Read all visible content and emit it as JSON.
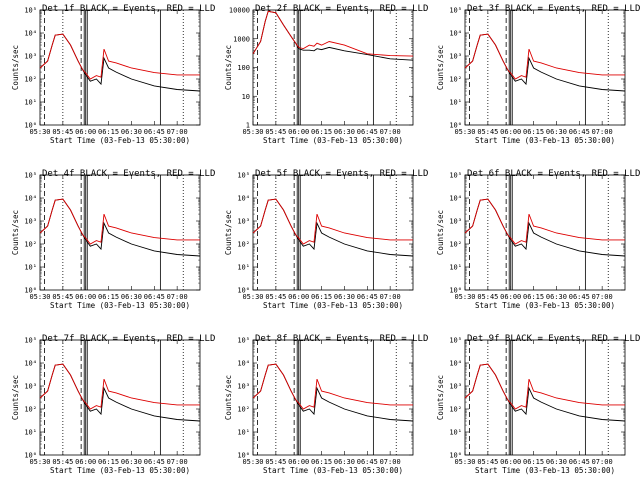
{
  "figure": {
    "ylabel": "Counts/sec",
    "xlabel": "Start Time (03-Feb-13 05:30:00)",
    "x_tick_labels": [
      "05:30",
      "05:45",
      "06:00",
      "06:15",
      "06:30",
      "06:45",
      "07:00"
    ],
    "series_colors": {
      "events": "#000000",
      "lld": "#dd0000"
    },
    "line_styles": {
      "solid": "#000000",
      "dashed": "#000000",
      "dotted": "#000000"
    }
  },
  "chart_data": [
    {
      "type": "line",
      "title": "Det 1f BLACK = Events, RED = LLD",
      "ylim": [
        1,
        100000
      ],
      "yscale": "log",
      "y_tick_labels": [
        "10⁰",
        "10¹",
        "10²",
        "10³",
        "10⁴",
        "10⁵"
      ],
      "x": [
        "05:30",
        "05:35",
        "05:38",
        "05:40",
        "05:45",
        "05:50",
        "05:55",
        "05:58",
        "06:00",
        "06:03",
        "06:07",
        "06:10",
        "06:12",
        "06:15",
        "06:20",
        "06:30",
        "06:45",
        "07:00",
        "07:15"
      ],
      "series": [
        {
          "key": "lld",
          "values": [
            300,
            600,
            3000,
            8000,
            9000,
            3000,
            600,
            250,
            180,
            100,
            140,
            120,
            2000,
            600,
            500,
            300,
            190,
            150,
            150
          ]
        },
        {
          "key": "events",
          "values": [
            300,
            600,
            3000,
            8000,
            9000,
            3000,
            600,
            250,
            150,
            80,
            100,
            60,
            800,
            300,
            200,
            100,
            50,
            35,
            30
          ]
        }
      ],
      "vlines": [
        {
          "x": "05:33",
          "style": "dashed"
        },
        {
          "x": "05:45",
          "style": "dotted"
        },
        {
          "x": "05:57",
          "style": "dashed"
        },
        {
          "x": "05:59",
          "style": "solid"
        },
        {
          "x": "06:00",
          "style": "solid"
        },
        {
          "x": "06:01",
          "style": "solid"
        },
        {
          "x": "06:49",
          "style": "solid"
        },
        {
          "x": "07:04",
          "style": "dotted"
        }
      ]
    },
    {
      "type": "line",
      "title": "Det 2f BLACK = Events, RED = LLD",
      "ylim": [
        1,
        10000
      ],
      "yscale": "log",
      "y_tick_labels": [
        "1",
        "10",
        "100",
        "1000",
        "10000"
      ],
      "x": [
        "05:30",
        "05:35",
        "05:38",
        "05:40",
        "05:45",
        "05:50",
        "05:55",
        "05:58",
        "06:00",
        "06:03",
        "06:07",
        "06:10",
        "06:12",
        "06:15",
        "06:20",
        "06:30",
        "06:45",
        "07:00",
        "07:15"
      ],
      "series": [
        {
          "key": "lld",
          "values": [
            300,
            800,
            4000,
            9000,
            8000,
            3000,
            1200,
            700,
            500,
            450,
            600,
            550,
            700,
            600,
            800,
            600,
            300,
            260,
            250
          ]
        },
        {
          "key": "events",
          "values": [
            300,
            800,
            4000,
            9000,
            8000,
            3000,
            1200,
            700,
            450,
            400,
            400,
            380,
            450,
            420,
            500,
            380,
            280,
            200,
            180
          ]
        }
      ],
      "vlines": [
        {
          "x": "05:33",
          "style": "dashed"
        },
        {
          "x": "05:45",
          "style": "dotted"
        },
        {
          "x": "05:57",
          "style": "dashed"
        },
        {
          "x": "05:59",
          "style": "solid"
        },
        {
          "x": "06:00",
          "style": "solid"
        },
        {
          "x": "06:01",
          "style": "solid"
        },
        {
          "x": "06:49",
          "style": "solid"
        },
        {
          "x": "07:04",
          "style": "dotted"
        }
      ]
    },
    {
      "type": "line",
      "title": "Det 3f BLACK = Events, RED = LLD",
      "ylim": [
        1,
        100000
      ],
      "yscale": "log",
      "y_tick_labels": [
        "10⁰",
        "10¹",
        "10²",
        "10³",
        "10⁴",
        "10⁵"
      ],
      "x": [
        "05:30",
        "05:35",
        "05:38",
        "05:40",
        "05:45",
        "05:50",
        "05:55",
        "05:58",
        "06:00",
        "06:03",
        "06:07",
        "06:10",
        "06:12",
        "06:15",
        "06:20",
        "06:30",
        "06:45",
        "07:00",
        "07:15"
      ],
      "series": [
        {
          "key": "lld",
          "values": [
            300,
            600,
            3000,
            8000,
            9000,
            3000,
            600,
            250,
            180,
            100,
            140,
            120,
            2000,
            600,
            500,
            300,
            190,
            150,
            150
          ]
        },
        {
          "key": "events",
          "values": [
            300,
            600,
            3000,
            8000,
            9000,
            3000,
            600,
            250,
            150,
            80,
            100,
            60,
            800,
            300,
            200,
            100,
            50,
            35,
            30
          ]
        }
      ],
      "vlines": [
        {
          "x": "05:33",
          "style": "dashed"
        },
        {
          "x": "05:45",
          "style": "dotted"
        },
        {
          "x": "05:57",
          "style": "dashed"
        },
        {
          "x": "05:59",
          "style": "solid"
        },
        {
          "x": "06:00",
          "style": "solid"
        },
        {
          "x": "06:01",
          "style": "solid"
        },
        {
          "x": "06:49",
          "style": "solid"
        },
        {
          "x": "07:04",
          "style": "dotted"
        }
      ]
    },
    {
      "type": "line",
      "title": "Det 4f BLACK = Events, RED = LLD",
      "ylim": [
        1,
        100000
      ],
      "yscale": "log",
      "y_tick_labels": [
        "10⁰",
        "10¹",
        "10²",
        "10³",
        "10⁴",
        "10⁵"
      ],
      "x": [
        "05:30",
        "05:35",
        "05:38",
        "05:40",
        "05:45",
        "05:50",
        "05:55",
        "05:58",
        "06:00",
        "06:03",
        "06:07",
        "06:10",
        "06:12",
        "06:15",
        "06:20",
        "06:30",
        "06:45",
        "07:00",
        "07:15"
      ],
      "series": [
        {
          "key": "lld",
          "values": [
            300,
            600,
            3000,
            8000,
            9000,
            3000,
            600,
            250,
            180,
            100,
            140,
            120,
            2000,
            600,
            500,
            300,
            190,
            150,
            150
          ]
        },
        {
          "key": "events",
          "values": [
            300,
            600,
            3000,
            8000,
            9000,
            3000,
            600,
            250,
            150,
            80,
            100,
            60,
            800,
            300,
            200,
            100,
            50,
            35,
            30
          ]
        }
      ],
      "vlines": [
        {
          "x": "05:33",
          "style": "dashed"
        },
        {
          "x": "05:45",
          "style": "dotted"
        },
        {
          "x": "05:57",
          "style": "dashed"
        },
        {
          "x": "05:59",
          "style": "solid"
        },
        {
          "x": "06:00",
          "style": "solid"
        },
        {
          "x": "06:01",
          "style": "solid"
        },
        {
          "x": "06:49",
          "style": "solid"
        },
        {
          "x": "07:04",
          "style": "dotted"
        }
      ]
    },
    {
      "type": "line",
      "title": "Det 5f BLACK = Events, RED = LLD",
      "ylim": [
        1,
        100000
      ],
      "yscale": "log",
      "y_tick_labels": [
        "10⁰",
        "10¹",
        "10²",
        "10³",
        "10⁴",
        "10⁵"
      ],
      "x": [
        "05:30",
        "05:35",
        "05:38",
        "05:40",
        "05:45",
        "05:50",
        "05:55",
        "05:58",
        "06:00",
        "06:03",
        "06:07",
        "06:10",
        "06:12",
        "06:15",
        "06:20",
        "06:30",
        "06:45",
        "07:00",
        "07:15"
      ],
      "series": [
        {
          "key": "lld",
          "values": [
            300,
            600,
            3000,
            8000,
            9000,
            3000,
            600,
            250,
            180,
            100,
            140,
            120,
            2000,
            600,
            500,
            300,
            190,
            150,
            150
          ]
        },
        {
          "key": "events",
          "values": [
            300,
            600,
            3000,
            8000,
            9000,
            3000,
            600,
            250,
            150,
            80,
            100,
            60,
            800,
            300,
            200,
            100,
            50,
            35,
            30
          ]
        }
      ],
      "vlines": [
        {
          "x": "05:33",
          "style": "dashed"
        },
        {
          "x": "05:45",
          "style": "dotted"
        },
        {
          "x": "05:57",
          "style": "dashed"
        },
        {
          "x": "05:59",
          "style": "solid"
        },
        {
          "x": "06:00",
          "style": "solid"
        },
        {
          "x": "06:01",
          "style": "solid"
        },
        {
          "x": "06:49",
          "style": "solid"
        },
        {
          "x": "07:04",
          "style": "dotted"
        }
      ]
    },
    {
      "type": "line",
      "title": "Det 6f BLACK = Events, RED = LLD",
      "ylim": [
        1,
        100000
      ],
      "yscale": "log",
      "y_tick_labels": [
        "10⁰",
        "10¹",
        "10²",
        "10³",
        "10⁴",
        "10⁵"
      ],
      "x": [
        "05:30",
        "05:35",
        "05:38",
        "05:40",
        "05:45",
        "05:50",
        "05:55",
        "05:58",
        "06:00",
        "06:03",
        "06:07",
        "06:10",
        "06:12",
        "06:15",
        "06:20",
        "06:30",
        "06:45",
        "07:00",
        "07:15"
      ],
      "series": [
        {
          "key": "lld",
          "values": [
            300,
            600,
            3000,
            8000,
            9000,
            3000,
            600,
            250,
            180,
            100,
            140,
            120,
            2000,
            600,
            500,
            300,
            190,
            150,
            150
          ]
        },
        {
          "key": "events",
          "values": [
            300,
            600,
            3000,
            8000,
            9000,
            3000,
            600,
            250,
            150,
            80,
            100,
            60,
            800,
            300,
            200,
            100,
            50,
            35,
            30
          ]
        }
      ],
      "vlines": [
        {
          "x": "05:33",
          "style": "dashed"
        },
        {
          "x": "05:45",
          "style": "dotted"
        },
        {
          "x": "05:57",
          "style": "dashed"
        },
        {
          "x": "05:59",
          "style": "solid"
        },
        {
          "x": "06:00",
          "style": "solid"
        },
        {
          "x": "06:01",
          "style": "solid"
        },
        {
          "x": "06:49",
          "style": "solid"
        },
        {
          "x": "07:04",
          "style": "dotted"
        }
      ]
    },
    {
      "type": "line",
      "title": "Det 7f BLACK = Events, RED = LLD",
      "ylim": [
        1,
        100000
      ],
      "yscale": "log",
      "y_tick_labels": [
        "10⁰",
        "10¹",
        "10²",
        "10³",
        "10⁴",
        "10⁵"
      ],
      "x": [
        "05:30",
        "05:35",
        "05:38",
        "05:40",
        "05:45",
        "05:50",
        "05:55",
        "05:58",
        "06:00",
        "06:03",
        "06:07",
        "06:10",
        "06:12",
        "06:15",
        "06:20",
        "06:30",
        "06:45",
        "07:00",
        "07:15"
      ],
      "series": [
        {
          "key": "lld",
          "values": [
            300,
            600,
            3000,
            8000,
            9000,
            3000,
            600,
            250,
            180,
            100,
            140,
            120,
            2000,
            600,
            500,
            300,
            190,
            150,
            150
          ]
        },
        {
          "key": "events",
          "values": [
            300,
            600,
            3000,
            8000,
            9000,
            3000,
            600,
            250,
            150,
            80,
            100,
            60,
            800,
            300,
            200,
            100,
            50,
            35,
            30
          ]
        }
      ],
      "vlines": [
        {
          "x": "05:33",
          "style": "dashed"
        },
        {
          "x": "05:45",
          "style": "dotted"
        },
        {
          "x": "05:57",
          "style": "dashed"
        },
        {
          "x": "05:59",
          "style": "solid"
        },
        {
          "x": "06:00",
          "style": "solid"
        },
        {
          "x": "06:01",
          "style": "solid"
        },
        {
          "x": "06:49",
          "style": "solid"
        },
        {
          "x": "07:04",
          "style": "dotted"
        }
      ]
    },
    {
      "type": "line",
      "title": "Det 8f BLACK = Events, RED = LLD",
      "ylim": [
        1,
        100000
      ],
      "yscale": "log",
      "y_tick_labels": [
        "10⁰",
        "10¹",
        "10²",
        "10³",
        "10⁴",
        "10⁵"
      ],
      "x": [
        "05:30",
        "05:35",
        "05:38",
        "05:40",
        "05:45",
        "05:50",
        "05:55",
        "05:58",
        "06:00",
        "06:03",
        "06:07",
        "06:10",
        "06:12",
        "06:15",
        "06:20",
        "06:30",
        "06:45",
        "07:00",
        "07:15"
      ],
      "series": [
        {
          "key": "lld",
          "values": [
            300,
            600,
            3000,
            8000,
            9000,
            3000,
            600,
            250,
            180,
            100,
            140,
            120,
            2000,
            600,
            500,
            300,
            190,
            150,
            150
          ]
        },
        {
          "key": "events",
          "values": [
            300,
            600,
            3000,
            8000,
            9000,
            3000,
            600,
            250,
            150,
            80,
            100,
            60,
            800,
            300,
            200,
            100,
            50,
            35,
            30
          ]
        }
      ],
      "vlines": [
        {
          "x": "05:33",
          "style": "dashed"
        },
        {
          "x": "05:45",
          "style": "dotted"
        },
        {
          "x": "05:57",
          "style": "dashed"
        },
        {
          "x": "05:59",
          "style": "solid"
        },
        {
          "x": "06:00",
          "style": "solid"
        },
        {
          "x": "06:01",
          "style": "solid"
        },
        {
          "x": "06:49",
          "style": "solid"
        },
        {
          "x": "07:04",
          "style": "dotted"
        }
      ]
    },
    {
      "type": "line",
      "title": "Det 9f BLACK = Events, RED = LLD",
      "ylim": [
        1,
        100000
      ],
      "yscale": "log",
      "y_tick_labels": [
        "10⁰",
        "10¹",
        "10²",
        "10³",
        "10⁴",
        "10⁵"
      ],
      "x": [
        "05:30",
        "05:35",
        "05:38",
        "05:40",
        "05:45",
        "05:50",
        "05:55",
        "05:58",
        "06:00",
        "06:03",
        "06:07",
        "06:10",
        "06:12",
        "06:15",
        "06:20",
        "06:30",
        "06:45",
        "07:00",
        "07:15"
      ],
      "series": [
        {
          "key": "lld",
          "values": [
            300,
            600,
            3000,
            8000,
            9000,
            3000,
            600,
            250,
            180,
            100,
            140,
            120,
            2000,
            600,
            500,
            300,
            190,
            150,
            150
          ]
        },
        {
          "key": "events",
          "values": [
            300,
            600,
            3000,
            8000,
            9000,
            3000,
            600,
            250,
            150,
            80,
            100,
            60,
            800,
            300,
            200,
            100,
            50,
            35,
            30
          ]
        }
      ],
      "vlines": [
        {
          "x": "05:33",
          "style": "dashed"
        },
        {
          "x": "05:45",
          "style": "dotted"
        },
        {
          "x": "05:57",
          "style": "dashed"
        },
        {
          "x": "05:59",
          "style": "solid"
        },
        {
          "x": "06:00",
          "style": "solid"
        },
        {
          "x": "06:01",
          "style": "solid"
        },
        {
          "x": "06:49",
          "style": "solid"
        },
        {
          "x": "07:04",
          "style": "dotted"
        }
      ]
    }
  ]
}
